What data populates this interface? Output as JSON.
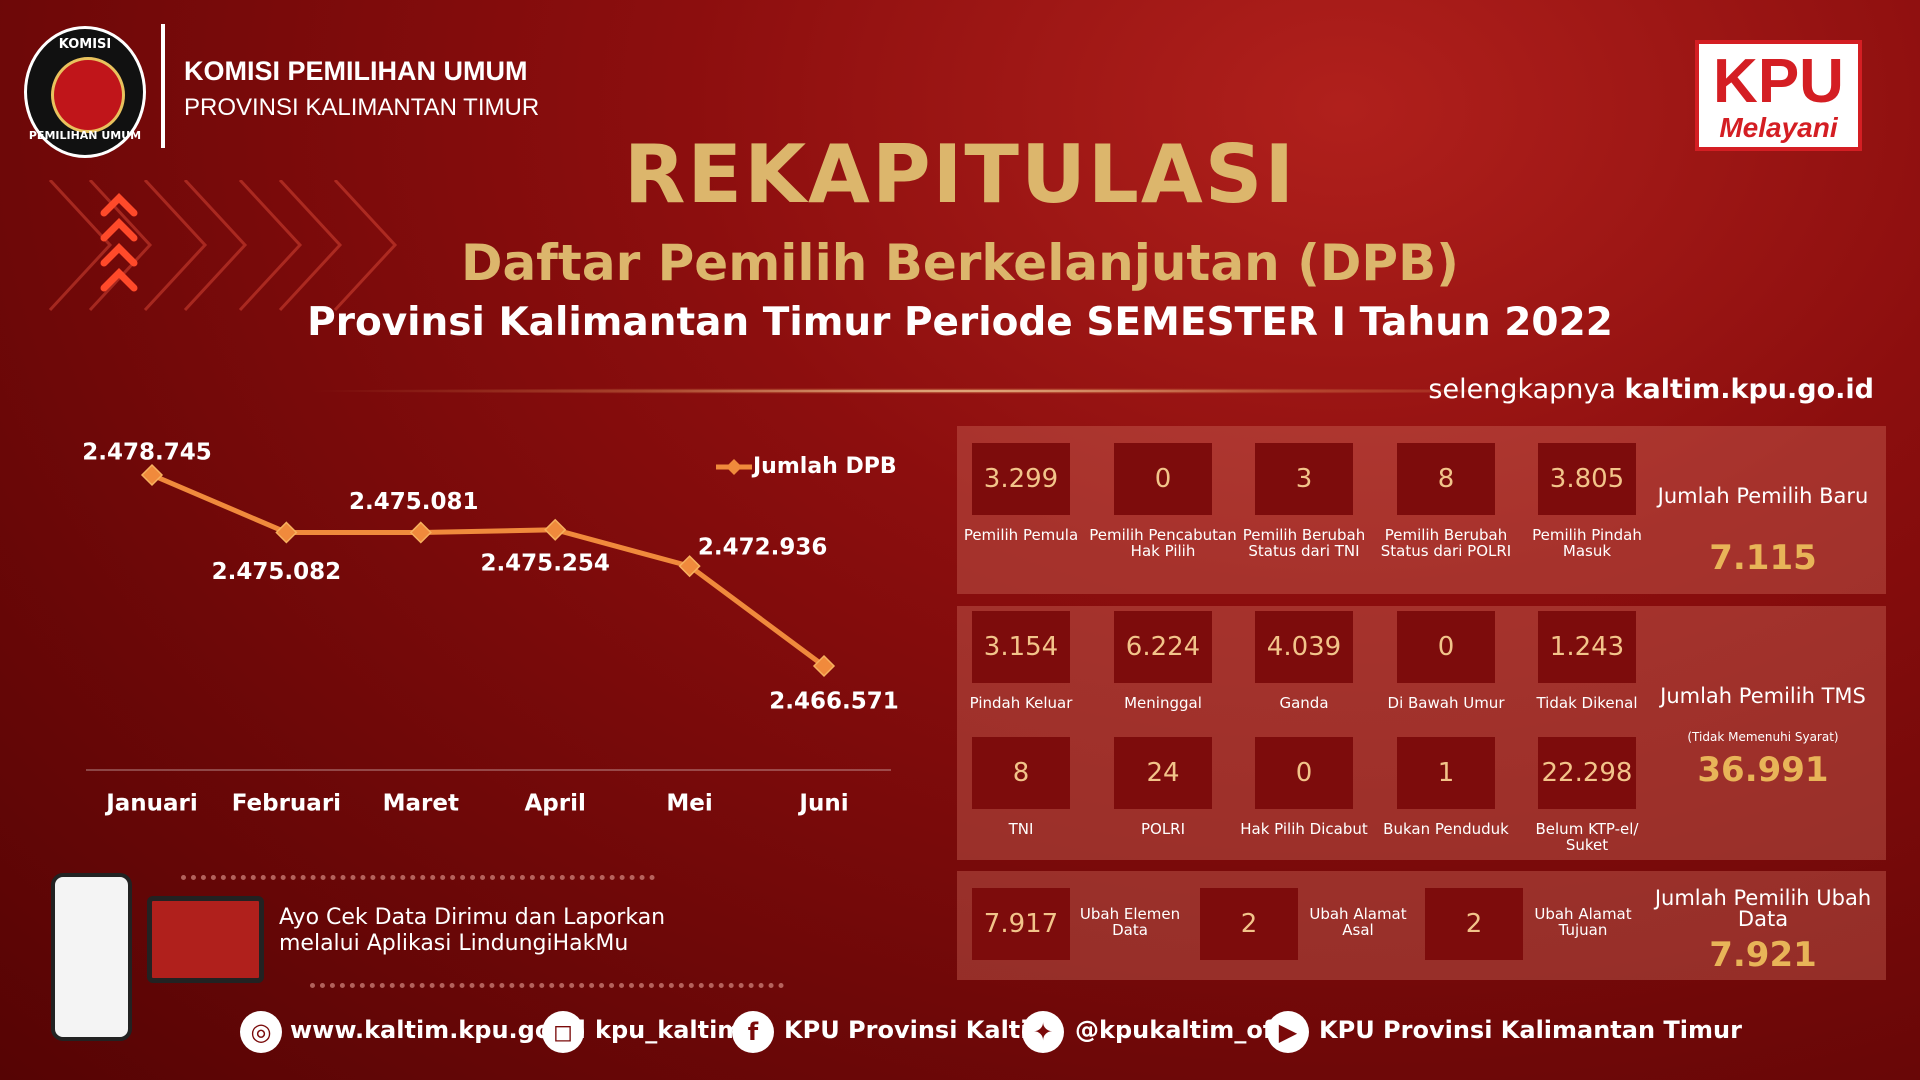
{
  "header": {
    "logo_top": "KOMISI",
    "logo_bottom": "PEMILIHAN UMUM",
    "org": "KOMISI PEMILIHAN UMUM",
    "province": "PROVINSI KALIMANTAN TIMUR",
    "badge_main": "KPU",
    "badge_sub": "Melayani"
  },
  "title": "REKAPITULASI",
  "subtitle": "Daftar Pemilih Berkelanjutan (DPB)",
  "period": "Provinsi Kalimantan Timur Periode SEMESTER I Tahun 2022",
  "more": {
    "prefix": "selengkapnya",
    "site": "kaltim.kpu.go.id"
  },
  "chart_data": {
    "type": "line",
    "categories": [
      "Januari",
      "Februari",
      "Maret",
      "April",
      "Mei",
      "Juni"
    ],
    "series": [
      {
        "name": "Jumlah DPB",
        "color": "#f08a3c",
        "values": [
          2478745,
          2475082,
          2475081,
          2475254,
          2472936,
          2466571
        ],
        "value_labels": [
          "2.478.745",
          "2.475.082",
          "2.475.081",
          "2.475.254",
          "2.472.936",
          "2.466.571"
        ]
      }
    ]
  },
  "panels": [
    {
      "items": [
        {
          "value": "3.299",
          "label": "Pemilih Pemula"
        },
        {
          "value": "0",
          "label": "Pemilih Pencabutan Hak Pilih"
        },
        {
          "value": "3",
          "label": "Pemilih Berubah Status dari TNI"
        },
        {
          "value": "8",
          "label": "Pemilih Berubah Status dari POLRI"
        },
        {
          "value": "3.805",
          "label": "Pemilih Pindah Masuk"
        }
      ],
      "total_label": "Jumlah Pemilih Baru",
      "total": "7.115"
    },
    {
      "items": [
        {
          "value": "3.154",
          "label": "Pindah Keluar"
        },
        {
          "value": "6.224",
          "label": "Meninggal"
        },
        {
          "value": "4.039",
          "label": "Ganda"
        },
        {
          "value": "0",
          "label": "Di Bawah Umur"
        },
        {
          "value": "1.243",
          "label": "Tidak Dikenal"
        },
        {
          "value": "8",
          "label": "TNI"
        },
        {
          "value": "24",
          "label": "POLRI"
        },
        {
          "value": "0",
          "label": "Hak Pilih Dicabut"
        },
        {
          "value": "1",
          "label": "Bukan Penduduk"
        },
        {
          "value": "22.298",
          "label": "Belum KTP-el/ Suket"
        }
      ],
      "total_label": "Jumlah Pemilih TMS",
      "total_note": "(Tidak Memenuhi Syarat)",
      "total": "36.991"
    },
    {
      "items": [
        {
          "value": "7.917",
          "label": "Ubah Elemen Data"
        },
        {
          "value": "2",
          "label": "Ubah Alamat Asal"
        },
        {
          "value": "2",
          "label": "Ubah Alamat Tujuan"
        }
      ],
      "total_label": "Jumlah Pemilih Ubah Data",
      "total": "7.921"
    }
  ],
  "promo": {
    "line1": "Ayo Cek Data Dirimu dan Laporkan",
    "line2": "melalui Aplikasi LindungiHakMu"
  },
  "footer": {
    "website": "www.kaltim.kpu.go.id",
    "instagram": "kpu_kaltim",
    "facebook": "KPU Provinsi Kaltim",
    "twitter": "@kpukaltim_ofc",
    "youtube": "KPU Provinsi Kalimantan Timur"
  }
}
